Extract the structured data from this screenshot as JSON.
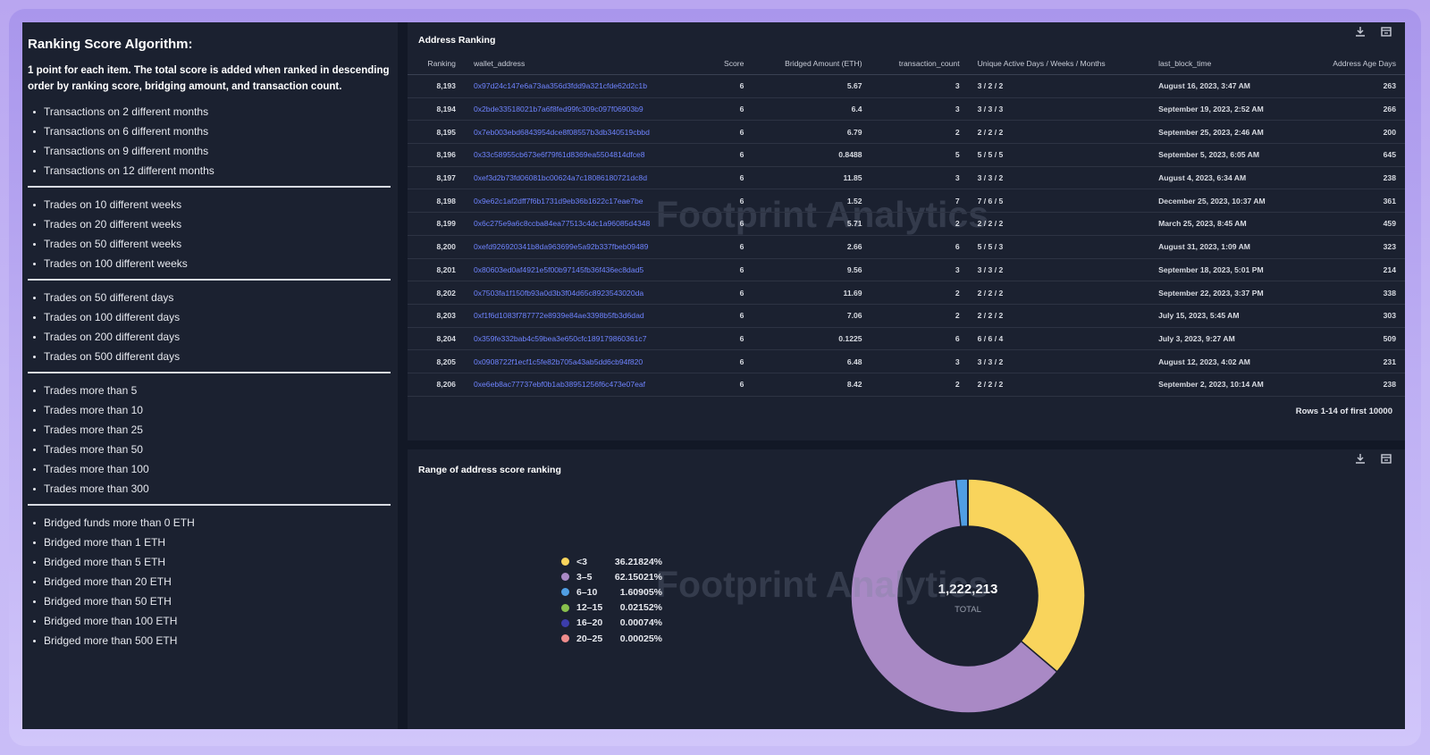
{
  "algorithm": {
    "title": "Ranking Score Algorithm:",
    "description": "1 point for each item. The total score is added when ranked in descending order by ranking score, bridging amount, and transaction count.",
    "groups": [
      [
        "Transactions on 2 different months",
        "Transactions on 6 different months",
        "Transactions on 9 different months",
        "Transactions on 12 different months"
      ],
      [
        "Trades on 10 different weeks",
        "Trades on 20 different weeks",
        "Trades on 50 different weeks",
        "Trades on 100 different weeks"
      ],
      [
        "Trades on 50 different days",
        "Trades on 100 different days",
        "Trades on 200 different days",
        "Trades on 500 different days"
      ],
      [
        "Trades more than 5",
        "Trades more than 10",
        "Trades more than 25",
        "Trades more than 50",
        "Trades more than 100",
        "Trades more than 300"
      ],
      [
        "Bridged funds more than 0 ETH",
        "Bridged more than 1 ETH",
        "Bridged more than 5 ETH",
        "Bridged more than 20 ETH",
        "Bridged more than 50 ETH",
        "Bridged more than 100 ETH",
        "Bridged more than 500 ETH"
      ]
    ]
  },
  "table": {
    "title": "Address Ranking",
    "columns": [
      "Ranking",
      "wallet_address",
      "Score",
      "Bridged Amount (ETH)",
      "transaction_count",
      "Unique Active Days / Weeks / Months",
      "last_block_time",
      "Address Age Days"
    ],
    "rows": [
      [
        "8,193",
        "0x97d24c147e6a73aa356d3fdd9a321cfde62d2c1b",
        "6",
        "5.67",
        "3",
        "3 / 2 / 2",
        "August 16, 2023, 3:47 AM",
        "263"
      ],
      [
        "8,194",
        "0x2bde33518021b7a6f8fed99fc309c097f06903b9",
        "6",
        "6.4",
        "3",
        "3 / 3 / 3",
        "September 19, 2023, 2:52 AM",
        "266"
      ],
      [
        "8,195",
        "0x7eb003ebd6843954dce8f08557b3db340519cbbd",
        "6",
        "6.79",
        "2",
        "2 / 2 / 2",
        "September 25, 2023, 2:46 AM",
        "200"
      ],
      [
        "8,196",
        "0x33c58955cb673e6f79f61d8369ea5504814dfce8",
        "6",
        "0.8488",
        "5",
        "5 / 5 / 5",
        "September 5, 2023, 6:05 AM",
        "645"
      ],
      [
        "8,197",
        "0xef3d2b73fd06081bc00624a7c18086180721dc8d",
        "6",
        "11.85",
        "3",
        "3 / 3 / 2",
        "August 4, 2023, 6:34 AM",
        "238"
      ],
      [
        "8,198",
        "0x9e62c1af2dff7f6b1731d9eb36b1622c17eae7be",
        "6",
        "1.52",
        "7",
        "7 / 6 / 5",
        "December 25, 2023, 10:37 AM",
        "361"
      ],
      [
        "8,199",
        "0x6c275e9a6c8ccba84ea77513c4dc1a96085d4348",
        "6",
        "5.71",
        "2",
        "2 / 2 / 2",
        "March 25, 2023, 8:45 AM",
        "459"
      ],
      [
        "8,200",
        "0xefd926920341b8da963699e5a92b337fbeb09489",
        "6",
        "2.66",
        "6",
        "5 / 5 / 3",
        "August 31, 2023, 1:09 AM",
        "323"
      ],
      [
        "8,201",
        "0x80603ed0af4921e5f00b97145fb36f436ec8dad5",
        "6",
        "9.56",
        "3",
        "3 / 3 / 2",
        "September 18, 2023, 5:01 PM",
        "214"
      ],
      [
        "8,202",
        "0x7503fa1f150fb93a0d3b3f04d65c8923543020da",
        "6",
        "11.69",
        "2",
        "2 / 2 / 2",
        "September 22, 2023, 3:37 PM",
        "338"
      ],
      [
        "8,203",
        "0xf1f6d1083f787772e8939e84ae3398b5fb3d6dad",
        "6",
        "7.06",
        "2",
        "2 / 2 / 2",
        "July 15, 2023, 5:45 AM",
        "303"
      ],
      [
        "8,204",
        "0x359fe332bab4c59bea3e650cfc189179860361c7",
        "6",
        "0.1225",
        "6",
        "6 / 6 / 4",
        "July 3, 2023, 9:27 AM",
        "509"
      ],
      [
        "8,205",
        "0x0908722f1ecf1c5fe82b705a43ab5dd6cb94f820",
        "6",
        "6.48",
        "3",
        "3 / 3 / 2",
        "August 12, 2023, 4:02 AM",
        "231"
      ],
      [
        "8,206",
        "0xe6eb8ac77737ebf0b1ab38951256f6c473e07eaf",
        "6",
        "8.42",
        "2",
        "2 / 2 / 2",
        "September 2, 2023, 10:14 AM",
        "238"
      ]
    ],
    "footer": "Rows 1-14 of first 10000"
  },
  "watermark": "Footprint Analytics",
  "chart_data": {
    "type": "pie",
    "title": "Range of address score ranking",
    "categories": [
      "<3",
      "3–5",
      "6–10",
      "12–15",
      "16–20",
      "20–25"
    ],
    "values": [
      36.21824,
      62.15021,
      1.60905,
      0.02152,
      0.00074,
      0.00025
    ],
    "value_labels": [
      "36.21824%",
      "62.15021%",
      "1.60905%",
      "0.02152%",
      "0.00074%",
      "0.00025%"
    ],
    "colors": [
      "#f9d45c",
      "#a989c5",
      "#509ee3",
      "#88bf4d",
      "#3c3dab",
      "#ef8c8c"
    ],
    "center_value": "1,222,213",
    "center_label": "TOTAL"
  }
}
